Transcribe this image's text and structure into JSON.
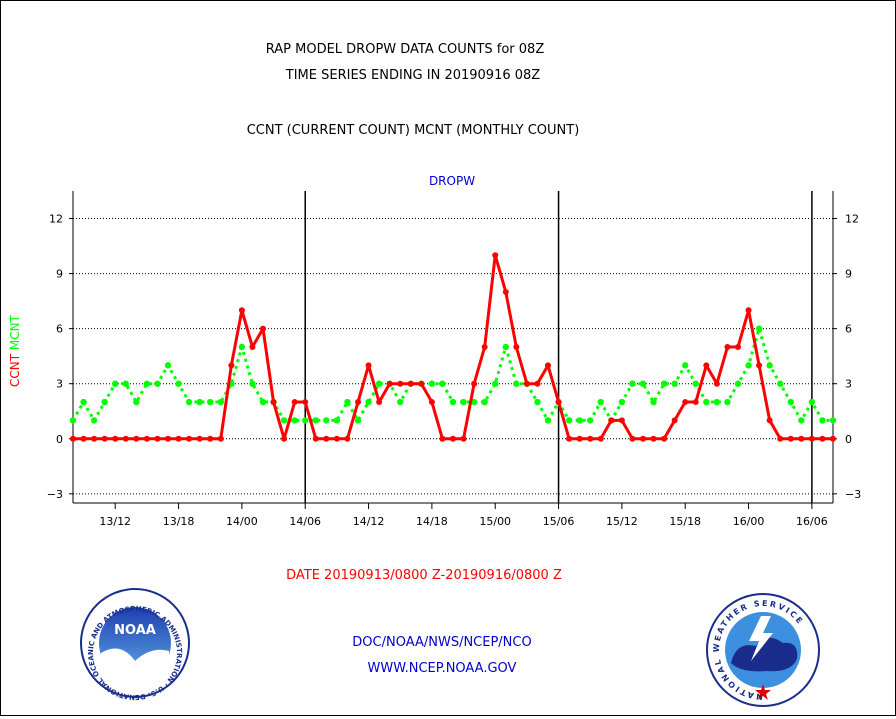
{
  "header": {
    "title_line1": "RAP MODEL DROPW DATA COUNTS for 08Z",
    "title_line2": "TIME SERIES ENDING IN 20190916 08Z",
    "title_line3": "CCNT (CURRENT COUNT) MCNT (MONTHLY COUNT)"
  },
  "footer": {
    "date_range": "DATE 20190913/0800 Z-20190916/0800 Z",
    "org_line": "DOC/NOAA/NWS/NCEP/NCO",
    "url_line": "WWW.NCEP.NOAA.GOV",
    "noaa_logo_text": "NOAA",
    "noaa_ring_text": "NATIONAL OCEANIC AND ATMOSPHERIC ADMINISTRATION · U.S. DEPARTMENT OF COMMERCE ·",
    "nws_ring_text": "NATIONAL WEATHER SERVICE"
  },
  "colors": {
    "ccnt": "#ff0000",
    "mcnt": "#00ff00",
    "subtitle": "#0000cc",
    "axis": "#000000"
  },
  "chart_data": {
    "type": "line",
    "title": "DROPW",
    "ylabel_left_parts": [
      "CCNT",
      "MCNT"
    ],
    "ylim": [
      -3.5,
      13.5
    ],
    "yticks": [
      -3,
      0,
      3,
      6,
      9,
      12
    ],
    "x_start": "2019-09-13 08Z",
    "x_end": "2019-09-16 08Z",
    "x_step": "hourly",
    "xlim_hours": [
      0,
      72
    ],
    "xtick_labels": [
      "13/12",
      "13/18",
      "14/00",
      "14/06",
      "14/12",
      "14/18",
      "15/00",
      "15/06",
      "15/12",
      "15/18",
      "16/00",
      "16/06"
    ],
    "xticks_hours": [
      4,
      10,
      16,
      22,
      28,
      34,
      40,
      46,
      52,
      58,
      64,
      70
    ],
    "day_boundaries_hours": [
      22,
      46,
      70
    ],
    "grid": "horizontal dotted",
    "series": [
      {
        "name": "CCNT",
        "values": [
          0,
          0,
          0,
          0,
          0,
          0,
          0,
          0,
          0,
          0,
          0,
          0,
          0,
          0,
          0,
          4,
          7,
          5,
          6,
          2,
          0,
          2,
          2,
          0,
          0,
          0,
          0,
          2,
          4,
          2,
          3,
          3,
          3,
          3,
          2,
          0,
          0,
          0,
          3,
          5,
          10,
          8,
          5,
          3,
          3,
          4,
          2,
          0,
          0,
          0,
          0,
          1,
          1,
          0,
          0,
          0,
          0,
          1,
          2,
          2,
          4,
          3,
          5,
          5,
          7,
          4,
          1,
          0,
          0,
          0,
          0,
          0,
          0
        ]
      },
      {
        "name": "MCNT",
        "values": [
          1,
          2,
          1,
          2,
          3,
          3,
          2,
          3,
          3,
          4,
          3,
          2,
          2,
          2,
          2,
          3,
          5,
          3,
          2,
          2,
          1,
          1,
          1,
          1,
          1,
          1,
          2,
          1,
          2,
          3,
          3,
          2,
          3,
          3,
          3,
          3,
          2,
          2,
          2,
          2,
          3,
          5,
          3,
          3,
          2,
          1,
          2,
          1,
          1,
          1,
          2,
          1,
          2,
          3,
          3,
          2,
          3,
          3,
          4,
          3,
          2,
          2,
          2,
          3,
          4,
          6,
          4,
          3,
          2,
          1,
          2,
          1,
          1
        ]
      }
    ]
  }
}
